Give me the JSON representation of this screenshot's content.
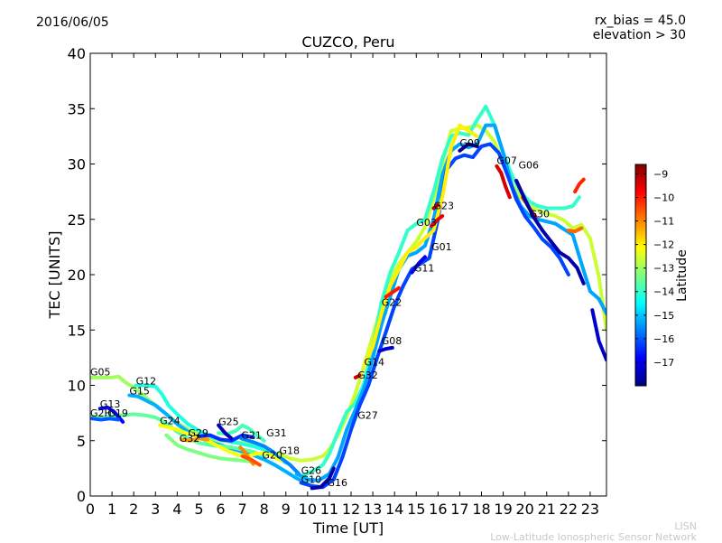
{
  "header": {
    "date": "2016/06/05",
    "bias_line1": "rx_bias = 45.0",
    "bias_line2": "elevation > 30"
  },
  "credit": {
    "line1": "LISN",
    "line2": "Low-Latitude Ionospheric Sensor Network"
  },
  "chart_data": {
    "type": "scatter",
    "title": "CUZCO, Peru",
    "xlabel": "Time [UT]",
    "ylabel": "TEC [UNITS]",
    "xlim": [
      0,
      23.75
    ],
    "ylim": [
      0,
      40
    ],
    "xticks": [
      0,
      1,
      2,
      3,
      4,
      5,
      6,
      7,
      8,
      9,
      10,
      11,
      12,
      13,
      14,
      15,
      16,
      17,
      18,
      19,
      20,
      21,
      22,
      23
    ],
    "yticks": [
      0,
      5,
      10,
      15,
      20,
      25,
      30,
      35,
      40
    ],
    "grid": false,
    "colorbar": {
      "label": "Latitude",
      "range": [
        -18,
        -8.6
      ],
      "ticks": [
        -17,
        -16,
        -15,
        -14,
        -13,
        -12,
        -11,
        -10,
        -9
      ],
      "colormap": "jet"
    },
    "satellite_labels": [
      {
        "name": "G05",
        "x": 0.0,
        "y": 10.9
      },
      {
        "name": "G12",
        "x": 2.1,
        "y": 10.1
      },
      {
        "name": "G15",
        "x": 1.8,
        "y": 9.2
      },
      {
        "name": "G13",
        "x": 0.45,
        "y": 8.0
      },
      {
        "name": "G19",
        "x": 0.8,
        "y": 7.2
      },
      {
        "name": "G2H",
        "x": 0.0,
        "y": 7.2
      },
      {
        "name": "G24",
        "x": 3.2,
        "y": 6.5
      },
      {
        "name": "G29",
        "x": 4.5,
        "y": 5.4
      },
      {
        "name": "G32",
        "x": 4.1,
        "y": 4.9
      },
      {
        "name": "G25",
        "x": 5.9,
        "y": 6.4
      },
      {
        "name": "G21",
        "x": 6.95,
        "y": 5.2
      },
      {
        "name": "G31",
        "x": 8.1,
        "y": 5.4
      },
      {
        "name": "G20",
        "x": 7.9,
        "y": 3.4
      },
      {
        "name": "G18",
        "x": 8.7,
        "y": 3.8
      },
      {
        "name": "G26",
        "x": 9.7,
        "y": 2.0
      },
      {
        "name": "G10",
        "x": 9.7,
        "y": 1.2
      },
      {
        "name": "G16",
        "x": 10.9,
        "y": 0.9
      },
      {
        "name": "G27",
        "x": 12.3,
        "y": 7.0
      },
      {
        "name": "G32",
        "x": 12.3,
        "y": 10.6
      },
      {
        "name": "G14",
        "x": 12.6,
        "y": 11.8
      },
      {
        "name": "G08",
        "x": 13.4,
        "y": 13.7
      },
      {
        "name": "G22",
        "x": 13.4,
        "y": 17.2
      },
      {
        "name": "G11",
        "x": 14.9,
        "y": 20.3
      },
      {
        "name": "G01",
        "x": 15.7,
        "y": 22.2
      },
      {
        "name": "G03",
        "x": 15.0,
        "y": 24.4
      },
      {
        "name": "G23",
        "x": 15.8,
        "y": 25.9
      },
      {
        "name": "G09",
        "x": 17.0,
        "y": 31.6
      },
      {
        "name": "G07",
        "x": 18.7,
        "y": 30.0
      },
      {
        "name": "G06",
        "x": 19.7,
        "y": 29.6
      },
      {
        "name": "G30",
        "x": 20.2,
        "y": 25.2
      }
    ],
    "tracks": [
      {
        "lat": -13.0,
        "x": [
          0,
          0.5,
          1,
          1.3,
          1.6,
          2,
          2.5,
          3,
          3.5,
          4,
          4.5,
          5,
          5.5,
          6,
          6.5,
          7,
          7.5,
          8
        ],
        "y": [
          10.7,
          10.7,
          10.7,
          10.8,
          10.3,
          9.8,
          9.0,
          8.2,
          7.4,
          6.6,
          6.0,
          5.6,
          5.2,
          5.0,
          4.9,
          4.8,
          4.6,
          4.4
        ]
      },
      {
        "lat": -14.2,
        "x": [
          2.1,
          2.5,
          3,
          3.3,
          3.6,
          4,
          4.5,
          5,
          5.5,
          6,
          6.5,
          7,
          7.5,
          8,
          8.5,
          9
        ],
        "y": [
          10.0,
          10.0,
          9.9,
          9.2,
          8.2,
          7.4,
          6.5,
          5.9,
          5.4,
          5.1,
          4.9,
          4.7,
          4.5,
          4.2,
          3.6,
          3.0
        ]
      },
      {
        "lat": -15.2,
        "x": [
          1.8,
          2.2,
          2.6,
          3,
          3.5,
          4,
          4.5,
          5,
          5.5,
          6,
          6.5,
          7,
          7.5,
          8,
          8.5,
          9,
          9.5,
          10
        ],
        "y": [
          9.1,
          9.0,
          8.6,
          8.2,
          7.4,
          6.5,
          5.8,
          5.3,
          4.9,
          4.6,
          4.3,
          4.0,
          3.7,
          3.3,
          2.8,
          2.2,
          1.6,
          1.1
        ]
      },
      {
        "lat": -13.6,
        "x": [
          0,
          0.5,
          1,
          1.5,
          2,
          2.5,
          3,
          3.5,
          4,
          4.5,
          5,
          5.5,
          6,
          6.5,
          7,
          7.5,
          8
        ],
        "y": [
          7.2,
          7.1,
          7.2,
          7.3,
          7.4,
          7.3,
          7.1,
          6.6,
          5.8,
          5.2,
          4.8,
          4.6,
          4.5,
          4.4,
          4.2,
          4.0,
          3.6
        ]
      },
      {
        "lat": -16.8,
        "x": [
          0.45,
          0.8,
          1.1,
          1.5
        ],
        "y": [
          7.9,
          8.0,
          7.6,
          6.7
        ]
      },
      {
        "lat": -16.0,
        "x": [
          0.1,
          0.5,
          0.9,
          1.3
        ],
        "y": [
          7.0,
          6.9,
          7.0,
          6.9
        ]
      },
      {
        "lat": -12.2,
        "x": [
          3.2,
          3.6,
          4,
          4.4,
          4.8,
          5.2,
          5.6,
          6,
          6.4,
          6.8,
          7.2,
          7.6,
          8,
          8.4,
          8.8
        ],
        "y": [
          6.4,
          6.2,
          6.0,
          5.7,
          5.5,
          5.2,
          4.8,
          4.4,
          4.0,
          3.7,
          3.6,
          3.8,
          3.9,
          3.6,
          3.2
        ]
      },
      {
        "lat": -13.3,
        "x": [
          3.5,
          4,
          4.5,
          5,
          5.5,
          6,
          6.5,
          7,
          7.5
        ],
        "y": [
          5.5,
          4.6,
          4.2,
          3.9,
          3.6,
          3.4,
          3.3,
          3.2,
          3.1
        ]
      },
      {
        "lat": -11.2,
        "x": [
          4.2,
          4.6,
          5.0,
          5.4
        ],
        "y": [
          5.1,
          5.0,
          5.2,
          5.1
        ]
      },
      {
        "lat": -16.4,
        "x": [
          5.0,
          5.5,
          6.0,
          6.5,
          7.0,
          7.5
        ],
        "y": [
          5.4,
          5.5,
          5.1,
          5.0,
          5.5,
          5.3
        ]
      },
      {
        "lat": -13.8,
        "x": [
          5.9,
          6.3,
          6.7,
          7.0,
          7.3,
          7.6,
          8.0
        ],
        "y": [
          5.7,
          5.6,
          5.9,
          6.4,
          6.1,
          5.6,
          5.0
        ]
      },
      {
        "lat": -15.6,
        "x": [
          6.95,
          7.3,
          7.6,
          8.0,
          8.4,
          8.8,
          9.2,
          9.6
        ],
        "y": [
          5.2,
          5.0,
          4.8,
          4.5,
          4.0,
          3.4,
          2.8,
          2.0
        ]
      },
      {
        "lat": -17.5,
        "x": [
          5.9,
          6.2,
          6.5
        ],
        "y": [
          6.4,
          5.7,
          5.2
        ]
      },
      {
        "lat": -11.0,
        "x": [
          6.9,
          7.1,
          7.3,
          7.5
        ],
        "y": [
          4.4,
          4.0,
          3.4,
          2.9
        ]
      },
      {
        "lat": -10.5,
        "x": [
          7.0,
          7.4,
          7.8
        ],
        "y": [
          3.6,
          3.3,
          2.8
        ]
      },
      {
        "lat": -12.6,
        "x": [
          8.7,
          9.2,
          9.7,
          10.2,
          10.7,
          11.0,
          11.4,
          11.8,
          12.2,
          12.6,
          13.0,
          13.4,
          13.8,
          14.2,
          14.6,
          15.0,
          15.4,
          15.8,
          16.2,
          16.6,
          17.0,
          17.4,
          17.8,
          18.2,
          18.6,
          19.0,
          19.4,
          19.8,
          20.2,
          20.6,
          21.0,
          21.4,
          21.8,
          22.2,
          22.6,
          23.0,
          23.4,
          23.75
        ],
        "y": [
          3.8,
          3.4,
          3.2,
          3.3,
          3.6,
          4.2,
          5.5,
          7.2,
          9.3,
          11.8,
          14.5,
          17.2,
          19.5,
          21.0,
          22.0,
          23.0,
          24.3,
          26.8,
          30.0,
          33.0,
          33.2,
          33.3,
          33.5,
          33.0,
          32.0,
          30.0,
          28.2,
          27.0,
          26.2,
          25.8,
          25.5,
          25.3,
          24.9,
          24.2,
          24.5,
          23.3,
          19.8,
          15.0
        ]
      },
      {
        "lat": -14.0,
        "x": [
          9.7,
          10.2,
          10.7,
          11.0,
          11.4,
          11.8,
          12.2,
          12.6,
          13.0,
          13.4,
          13.8,
          14.2,
          14.6,
          15.0,
          15.4,
          15.8,
          16.2,
          16.6,
          17.0,
          17.4,
          17.8,
          18.2,
          18.6,
          19.0,
          19.4,
          19.8,
          20.2,
          20.6,
          21.0,
          21.4,
          21.8,
          22.2,
          22.5
        ],
        "y": [
          1.8,
          2.2,
          2.8,
          3.8,
          5.8,
          7.6,
          8.4,
          10.2,
          13.5,
          17.5,
          20.2,
          22.0,
          24.0,
          24.6,
          25.0,
          27.5,
          30.5,
          32.5,
          32.8,
          32.6,
          34.0,
          35.2,
          33.5,
          31.0,
          29.0,
          27.5,
          26.6,
          26.2,
          26.0,
          26.0,
          26.0,
          26.2,
          27.0
        ]
      },
      {
        "lat": -15.3,
        "x": [
          9.5,
          10.0,
          10.5,
          11.0,
          11.4,
          11.8,
          12.2,
          12.6,
          13.0,
          13.4,
          13.8,
          14.2,
          14.6,
          15.0,
          15.4,
          15.8,
          16.2,
          16.6,
          17.0,
          17.4,
          17.8,
          18.2,
          18.6,
          19.0,
          19.4,
          19.8,
          20.2,
          20.6,
          21.0,
          21.4,
          21.8,
          22.2,
          22.6,
          23.0,
          23.4,
          23.75
        ],
        "y": [
          2.0,
          1.5,
          1.4,
          2.0,
          3.5,
          6.0,
          7.8,
          9.8,
          12.5,
          15.5,
          18.0,
          20.5,
          21.7,
          22.0,
          22.6,
          25.0,
          29.0,
          31.2,
          31.8,
          31.5,
          31.8,
          33.5,
          33.5,
          31.0,
          28.0,
          26.2,
          25.3,
          25.0,
          24.8,
          24.6,
          24.1,
          23.6,
          21.0,
          18.5,
          17.8,
          16.5
        ]
      },
      {
        "lat": -16.2,
        "x": [
          9.7,
          10.2,
          10.7,
          11.2,
          11.6,
          12.0,
          12.4,
          12.8,
          13.2,
          13.6,
          14.0,
          14.4,
          14.8,
          15.2,
          15.6,
          16.0,
          16.4,
          16.8,
          17.2,
          17.6,
          18.0,
          18.4,
          18.8,
          19.2,
          19.6,
          20.0,
          20.4,
          20.8,
          21.2,
          21.6,
          22.0
        ],
        "y": [
          1.2,
          0.9,
          0.8,
          1.5,
          3.5,
          6.0,
          8.2,
          10.0,
          12.5,
          14.8,
          17.2,
          19.0,
          20.5,
          21.0,
          21.5,
          25.0,
          29.5,
          30.5,
          30.8,
          30.6,
          31.6,
          31.8,
          31.0,
          29.0,
          26.8,
          25.3,
          24.3,
          23.2,
          22.5,
          21.5,
          20.0
        ]
      },
      {
        "lat": -17.6,
        "x": [
          10.2,
          10.6,
          11.0,
          11.2
        ],
        "y": [
          0.7,
          0.8,
          1.6,
          2.5
        ]
      },
      {
        "lat": -12.0,
        "x": [
          12.6,
          13.0,
          13.4,
          13.8,
          14.2,
          14.6,
          15.0,
          15.4,
          15.8,
          16.2,
          16.6,
          17.0,
          17.4,
          17.8
        ],
        "y": [
          11.8,
          13.5,
          16.5,
          19.0,
          20.5,
          22.0,
          22.5,
          23.3,
          24.0,
          27.0,
          31.5,
          33.5,
          33.0,
          32.5
        ]
      },
      {
        "lat": -9.3,
        "x": [
          12.2,
          12.4
        ],
        "y": [
          10.7,
          10.9
        ]
      },
      {
        "lat": -10.0,
        "x": [
          13.6,
          13.9,
          14.2
        ],
        "y": [
          18.0,
          18.4,
          18.8
        ]
      },
      {
        "lat": -17.2,
        "x": [
          13.3,
          13.6,
          13.9
        ],
        "y": [
          13.1,
          13.3,
          13.4
        ]
      },
      {
        "lat": -17.0,
        "x": [
          14.8,
          15.1,
          15.4
        ],
        "y": [
          20.2,
          21.0,
          21.6
        ]
      },
      {
        "lat": -9.6,
        "x": [
          15.7,
          16.0,
          16.2
        ],
        "y": [
          24.4,
          25.0,
          25.3
        ]
      },
      {
        "lat": -9.1,
        "x": [
          15.8,
          16.0
        ],
        "y": [
          26.0,
          26.3
        ]
      },
      {
        "lat": -17.8,
        "x": [
          17.0,
          17.4,
          17.8
        ],
        "y": [
          31.2,
          31.8,
          31.6
        ]
      },
      {
        "lat": -9.4,
        "x": [
          18.7,
          18.9,
          19.1,
          19.3
        ],
        "y": [
          29.8,
          29.2,
          28.0,
          27.0
        ]
      },
      {
        "lat": -9.8,
        "x": [
          19.9,
          20.2,
          20.5
        ],
        "y": [
          27.0,
          26.0,
          25.2
        ]
      },
      {
        "lat": -17.6,
        "x": [
          19.6,
          20.0,
          20.4,
          20.8,
          21.2,
          21.6,
          22.0,
          22.4,
          22.7
        ],
        "y": [
          28.5,
          26.8,
          25.2,
          24.0,
          23.0,
          22.0,
          21.5,
          20.6,
          19.2
        ]
      },
      {
        "lat": -10.1,
        "x": [
          22.3,
          22.5,
          22.7
        ],
        "y": [
          27.5,
          28.2,
          28.6
        ]
      },
      {
        "lat": -10.7,
        "x": [
          22.0,
          22.3,
          22.6
        ],
        "y": [
          24.0,
          23.9,
          24.2
        ]
      },
      {
        "lat": -17.3,
        "x": [
          23.1,
          23.4,
          23.75
        ],
        "y": [
          16.8,
          14.0,
          12.3
        ]
      }
    ]
  }
}
